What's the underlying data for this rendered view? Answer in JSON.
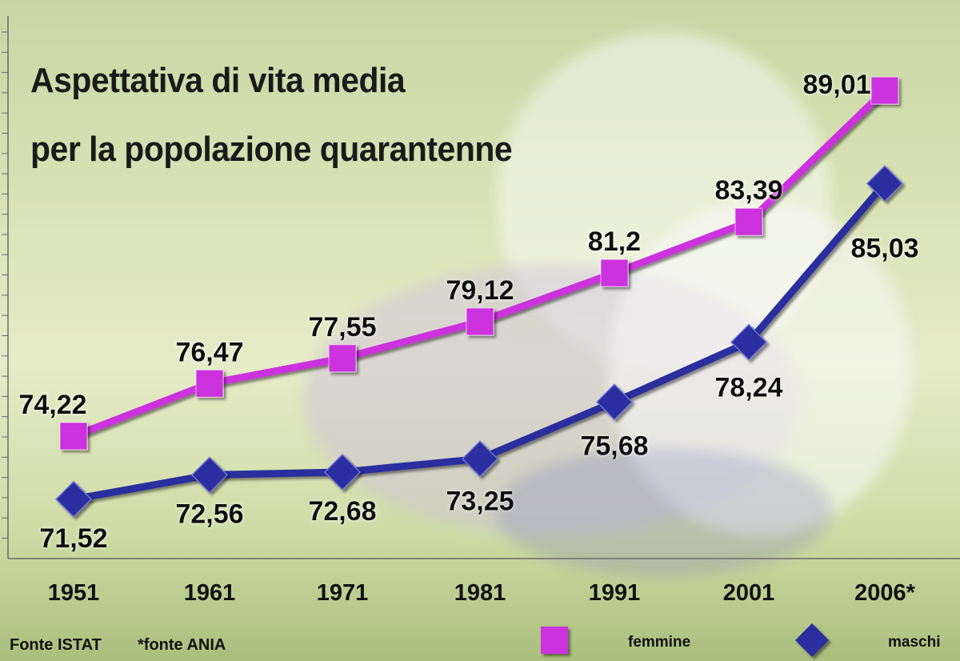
{
  "chart_data": {
    "type": "line",
    "title_lines": [
      "Aspettativa di vita media",
      "per la popolazione quarantenne"
    ],
    "categories": [
      "1951",
      "1961",
      "1971",
      "1981",
      "1991",
      "2001",
      "2006*"
    ],
    "series": [
      {
        "name": "femmine",
        "color": "#cc33dd",
        "marker": "square",
        "values": [
          74.22,
          76.47,
          77.55,
          79.12,
          81.2,
          83.39,
          89.01
        ],
        "labels": [
          "74,22",
          "76,47",
          "77,55",
          "79,12",
          "81,2",
          "83,39",
          "89,01"
        ]
      },
      {
        "name": "maschi",
        "color": "#2b2f9e",
        "marker": "diamond",
        "values": [
          71.52,
          72.56,
          72.68,
          73.25,
          75.68,
          78.24,
          85.03
        ],
        "labels": [
          "71,52",
          "72,56",
          "72,68",
          "73,25",
          "75,68",
          "78,24",
          "85,03"
        ]
      }
    ],
    "legend_position": "bottom-right",
    "grid": false
  },
  "footer": {
    "source": "Fonte ISTAT",
    "note": "*fonte ANIA"
  }
}
